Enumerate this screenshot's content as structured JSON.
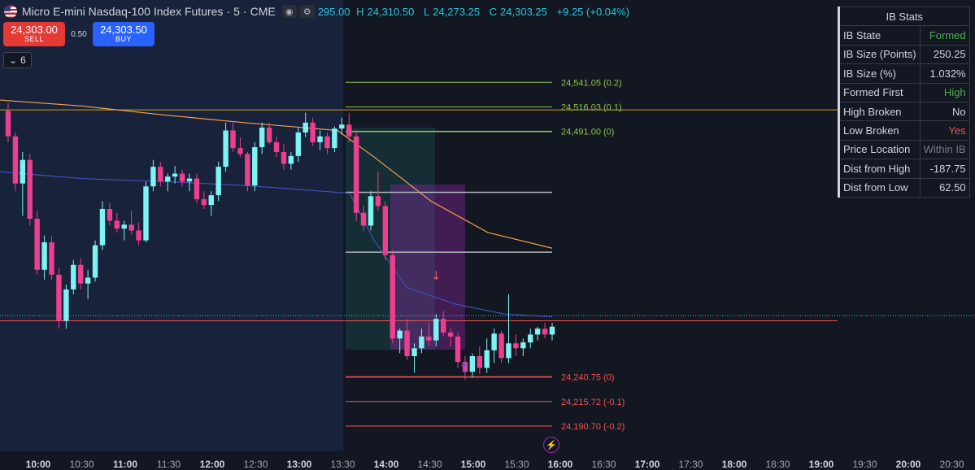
{
  "header": {
    "symbol_title": "Micro E-mini Nasdaq-100 Index Futures",
    "interval": "5",
    "exchange": "CME",
    "sep": "·",
    "ohlc_partial_open": "295.00",
    "high_label": "H",
    "high": "24,310.50",
    "low_label": "L",
    "low": "24,273.25",
    "close_label": "C",
    "close": "24,303.25",
    "change": "+9.25 (+0.04%)"
  },
  "trade": {
    "sell_price": "24,303.00",
    "sell_label": "SELL",
    "spread": "0.50",
    "buy_price": "24,303.50",
    "buy_label": "BUY"
  },
  "indicator_pill": {
    "count": "6",
    "icon": "chevron-down-icon"
  },
  "ib_stats": {
    "title": "IB Stats",
    "rows": [
      {
        "label": "IB State",
        "value": "Formed",
        "color": "#4caf50"
      },
      {
        "label": "IB Size (Points)",
        "value": "250.25",
        "color": "#d1d4dc"
      },
      {
        "label": "IB Size (%)",
        "value": "1.032%",
        "color": "#d1d4dc"
      },
      {
        "label": "Formed First",
        "value": "High",
        "color": "#4caf50"
      },
      {
        "label": "High Broken",
        "value": "No",
        "color": "#d1d4dc"
      },
      {
        "label": "Low Broken",
        "value": "Yes",
        "color": "#ef5350"
      },
      {
        "label": "Price Location",
        "value": "Within IB",
        "color": "#787b86"
      },
      {
        "label": "Dist from High",
        "value": "-187.75",
        "color": "#d1d4dc"
      },
      {
        "label": "Dist from Low",
        "value": "62.50",
        "color": "#d1d4dc"
      }
    ]
  },
  "chart_data": {
    "type": "candlestick",
    "price_range": [
      24165,
      24625
    ],
    "time_axis": [
      "10:00",
      "10:30",
      "11:00",
      "11:30",
      "12:00",
      "12:30",
      "13:00",
      "13:30",
      "14:00",
      "14:30",
      "15:00",
      "15:30",
      "16:00",
      "16:30",
      "17:00",
      "17:30",
      "18:00",
      "18:30",
      "19:00",
      "19:30",
      "20:00",
      "20:30"
    ],
    "time_axis_bold": [
      "10:00",
      "11:00",
      "12:00",
      "13:00",
      "14:00",
      "15:00",
      "16:00",
      "17:00",
      "18:00",
      "19:00",
      "20:00"
    ],
    "ib_levels": [
      {
        "label": "24,541.05 (0.2)",
        "price": 24541.05,
        "color": "#8bc34a"
      },
      {
        "label": "24,516.03 (0.1)",
        "price": 24516.03,
        "color": "#8bc34a"
      },
      {
        "label": "24,491.00 (0)",
        "price": 24491.0,
        "color": "#8bc34a"
      },
      {
        "label": "24,240.75 (0)",
        "price": 24240.75,
        "color": "#ef5350"
      },
      {
        "label": "24,215.72 (-0.1)",
        "price": 24215.72,
        "color": "#ef5350"
      },
      {
        "label": "24,190.70 (-0.2)",
        "price": 24190.7,
        "color": "#ef5350"
      }
    ],
    "mid_levels": [
      24429.0,
      24368.0
    ],
    "prior_levels": [
      {
        "price": 24513,
        "color": "#d4a017"
      },
      {
        "price": 24298,
        "color": "#ef5350"
      }
    ],
    "current_price": 24303.25,
    "candles": [
      [
        24512,
        24520,
        24480,
        24486
      ],
      [
        24486,
        24490,
        24430,
        24438
      ],
      [
        24438,
        24470,
        24405,
        24462
      ],
      [
        24462,
        24468,
        24395,
        24402
      ],
      [
        24402,
        24410,
        24345,
        24350
      ],
      [
        24350,
        24385,
        24340,
        24378
      ],
      [
        24378,
        24384,
        24340,
        24345
      ],
      [
        24345,
        24352,
        24290,
        24298
      ],
      [
        24298,
        24335,
        24290,
        24330
      ],
      [
        24330,
        24360,
        24325,
        24355
      ],
      [
        24355,
        24362,
        24330,
        24336
      ],
      [
        24336,
        24350,
        24320,
        24342
      ],
      [
        24342,
        24380,
        24338,
        24375
      ],
      [
        24375,
        24420,
        24370,
        24412
      ],
      [
        24412,
        24418,
        24395,
        24400
      ],
      [
        24400,
        24408,
        24388,
        24392
      ],
      [
        24392,
        24400,
        24380,
        24396
      ],
      [
        24396,
        24410,
        24386,
        24390
      ],
      [
        24390,
        24398,
        24375,
        24380
      ],
      [
        24380,
        24440,
        24378,
        24435
      ],
      [
        24435,
        24462,
        24430,
        24455
      ],
      [
        24455,
        24460,
        24435,
        24440
      ],
      [
        24440,
        24448,
        24430,
        24445
      ],
      [
        24445,
        24456,
        24438,
        24448
      ],
      [
        24448,
        24452,
        24435,
        24440
      ],
      [
        24440,
        24448,
        24430,
        24443
      ],
      [
        24443,
        24448,
        24418,
        24422
      ],
      [
        24422,
        24430,
        24412,
        24416
      ],
      [
        24416,
        24430,
        24405,
        24426
      ],
      [
        24426,
        24460,
        24420,
        24455
      ],
      [
        24455,
        24500,
        24450,
        24492
      ],
      [
        24492,
        24500,
        24470,
        24474
      ],
      [
        24474,
        24485,
        24465,
        24468
      ],
      [
        24468,
        24470,
        24430,
        24436
      ],
      [
        24436,
        24480,
        24430,
        24475
      ],
      [
        24475,
        24500,
        24468,
        24495
      ],
      [
        24495,
        24500,
        24478,
        24480
      ],
      [
        24480,
        24486,
        24465,
        24470
      ],
      [
        24470,
        24478,
        24452,
        24458
      ],
      [
        24458,
        24470,
        24452,
        24466
      ],
      [
        24466,
        24495,
        24460,
        24490
      ],
      [
        24490,
        24510,
        24485,
        24500
      ],
      [
        24500,
        24505,
        24476,
        24480
      ],
      [
        24480,
        24492,
        24472,
        24486
      ],
      [
        24486,
        24490,
        24468,
        24474
      ],
      [
        24474,
        24496,
        24470,
        24494
      ],
      [
        24494,
        24505,
        24488,
        24498
      ],
      [
        24498,
        24510,
        24480,
        24486
      ],
      [
        24486,
        24492,
        24400,
        24408
      ],
      [
        24408,
        24415,
        24390,
        24395
      ],
      [
        24395,
        24430,
        24390,
        24425
      ],
      [
        24425,
        24450,
        24410,
        24415
      ],
      [
        24415,
        24420,
        24360,
        24365
      ],
      [
        24365,
        24370,
        24275,
        24280
      ],
      [
        24280,
        24290,
        24265,
        24288
      ],
      [
        24288,
        24300,
        24258,
        24262
      ],
      [
        24262,
        24275,
        24245,
        24270
      ],
      [
        24270,
        24290,
        24265,
        24282
      ],
      [
        24282,
        24296,
        24272,
        24278
      ],
      [
        24278,
        24305,
        24272,
        24300
      ],
      [
        24300,
        24308,
        24282,
        24286
      ],
      [
        24286,
        24290,
        24272,
        24282
      ],
      [
        24282,
        24286,
        24250,
        24256
      ],
      [
        24256,
        24262,
        24238,
        24246
      ],
      [
        24246,
        24265,
        24240,
        24262
      ],
      [
        24262,
        24272,
        24244,
        24250
      ],
      [
        24250,
        24280,
        24245,
        24268
      ],
      [
        24268,
        24290,
        24255,
        24285
      ],
      [
        24285,
        24288,
        24255,
        24260
      ],
      [
        24260,
        24325,
        24255,
        24275
      ],
      [
        24275,
        24284,
        24262,
        24270
      ],
      [
        24270,
        24280,
        24262,
        24276
      ],
      [
        24276,
        24290,
        24270,
        24284
      ],
      [
        24284,
        24292,
        24278,
        24290
      ],
      [
        24290,
        24296,
        24280,
        24284
      ],
      [
        24284,
        24296,
        24278,
        24292
      ]
    ],
    "candle_x_start": 10,
    "candle_x_end": 679,
    "ma_orange": [
      [
        0,
        24523
      ],
      [
        100,
        24517
      ],
      [
        200,
        24508
      ],
      [
        300,
        24500
      ],
      [
        415,
        24492
      ],
      [
        460,
        24465
      ],
      [
        530,
        24420
      ],
      [
        600,
        24388
      ],
      [
        679,
        24372
      ]
    ],
    "ma_blue": [
      [
        0,
        24450
      ],
      [
        100,
        24443
      ],
      [
        200,
        24440
      ],
      [
        300,
        24436
      ],
      [
        430,
        24428
      ],
      [
        460,
        24380
      ],
      [
        500,
        24332
      ],
      [
        560,
        24315
      ],
      [
        620,
        24305
      ],
      [
        679,
        24302
      ]
    ],
    "session_end_x": 422,
    "arrow_down_label": "↓",
    "arrow_up_label": "↑"
  },
  "footer": {
    "replay_icon": "lightning-icon"
  }
}
